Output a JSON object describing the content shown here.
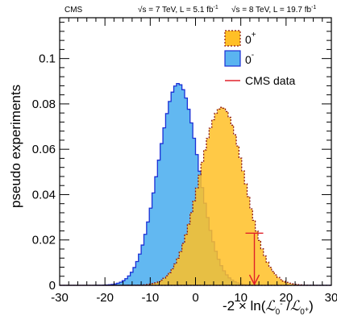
{
  "header": {
    "experiment": "CMS",
    "lumi_7": "√s = 7 TeV, L = 5.1 fb",
    "lumi_8": "√s = 8 TeV, L = 19.7 fb",
    "lumi_exp": "-1"
  },
  "chart_data": {
    "type": "area",
    "title": "",
    "ylabel": "pseudo experiments",
    "xlabel": {
      "prefix": "-2 × ln(",
      "script_l": "ℒ",
      "num_sub": "0",
      "num_sup": "-",
      "sep": " /",
      "den_sub": "0",
      "den_sup": "+",
      "suffix": ")"
    },
    "xlim": [
      -30,
      30
    ],
    "ylim": [
      0,
      0.118
    ],
    "x_ticks": [
      "-30",
      "-20",
      "-10",
      "0",
      "10",
      "20",
      "30"
    ],
    "y_ticks": [
      "0",
      "0.02",
      "0.04",
      "0.06",
      "0.08",
      "0.1"
    ],
    "y_tick_values": [
      0,
      0.02,
      0.04,
      0.06,
      0.08,
      0.1
    ],
    "x_tick_values": [
      -30,
      -20,
      -10,
      0,
      10,
      20,
      30
    ],
    "bin_width": 0.6,
    "legend_position": "top-right",
    "series": [
      {
        "name": "0",
        "name_sup": "-",
        "fill": "#5ab4f0",
        "line": "#1a2fd6",
        "shape": "gaussian",
        "peak_x": -3.8,
        "peak_y": 0.089,
        "sigma": 4.4
      },
      {
        "name": "0",
        "name_sup": "+",
        "fill": "#ffbf26",
        "line": "#8a1414",
        "shape": "gaussian",
        "peak_x": 5.8,
        "peak_y": 0.0785,
        "sigma": 5.0
      }
    ],
    "observed": {
      "name": "CMS data",
      "x": 13.0,
      "arrow_top_y": 0.023,
      "color": "#e0202a"
    }
  }
}
